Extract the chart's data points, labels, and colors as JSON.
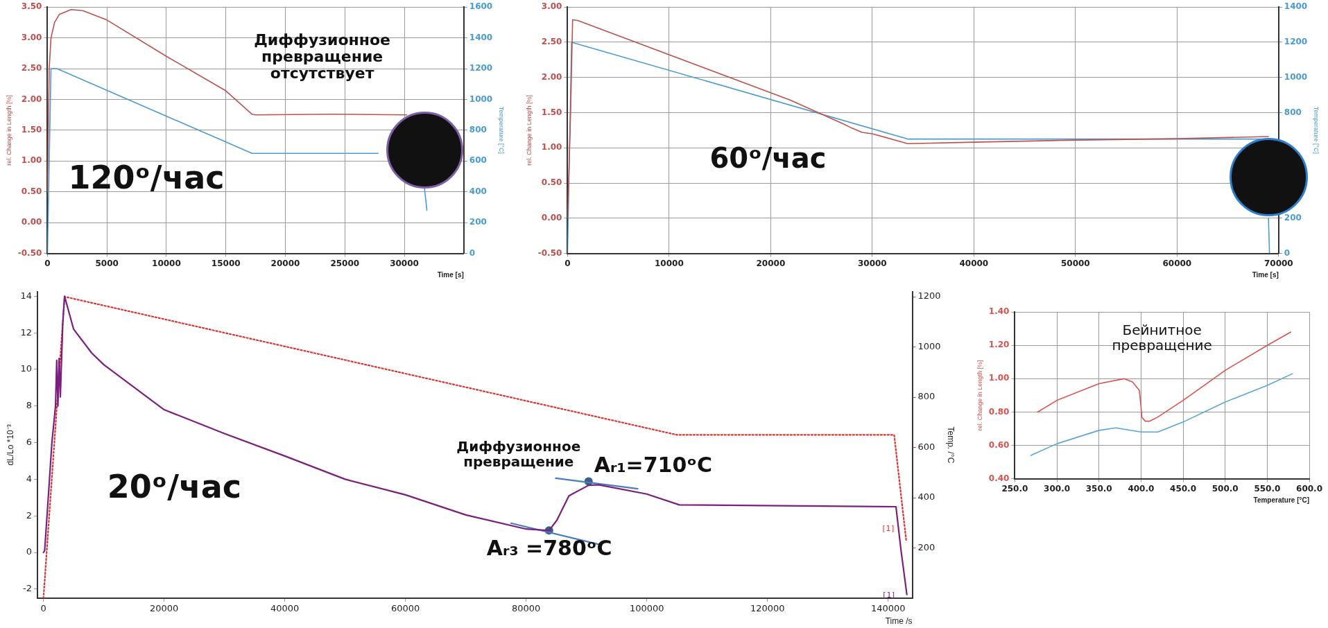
{
  "chart_data": [
    {
      "type": "line",
      "xlabel": "Time [s]",
      "ylabel": "rel. Change in Length [%]",
      "y2label": "Temperature [°C]",
      "grid": true,
      "legend": false,
      "xlim": [
        0,
        35000
      ],
      "xticks": [
        0,
        5000,
        10000,
        15000,
        20000,
        25000,
        30000
      ],
      "ylim": [
        -0.5,
        3.5
      ],
      "yticks": [
        {
          "value": -0.5,
          "label": "-0.50"
        },
        {
          "value": 0,
          "label": "0.00"
        },
        {
          "value": 0.5,
          "label": "0.50"
        },
        {
          "value": 1,
          "label": "1.00"
        },
        {
          "value": 1.5,
          "label": "1.50"
        },
        {
          "value": 2,
          "label": "2.00"
        },
        {
          "value": 2.5,
          "label": "2.50"
        },
        {
          "value": 3,
          "label": "3.00"
        },
        {
          "value": 3.5,
          "label": "3.50"
        }
      ],
      "y2lim": [
        0,
        1600
      ],
      "y2ticks": [
        0,
        200,
        400,
        600,
        800,
        1000,
        1200,
        1400,
        1600
      ],
      "series": [
        {
          "color": "#c0504d",
          "x": [
            0,
            150,
            300,
            600,
            1000,
            2000,
            3000,
            5000,
            10000,
            15000,
            17200,
            17500,
            24000,
            30200
          ],
          "values": [
            0.5,
            2.5,
            3.0,
            3.25,
            3.38,
            3.46,
            3.44,
            3.29,
            2.7,
            2.14,
            1.76,
            1.75,
            1.76,
            1.75
          ]
        },
        {
          "color": "#4a9bd1",
          "axis": "y2",
          "x": [
            0,
            300,
            800,
            17200,
            27800,
            30000,
            31700,
            31900
          ],
          "values": [
            0,
            1200,
            1200,
            650,
            650,
            null,
            420,
            280
          ]
        }
      ],
      "annotations": [
        "Диффузионное превращение отсутствует",
        "120ᵒ/час"
      ]
    },
    {
      "type": "line",
      "xlabel": "Time [s]",
      "ylabel": "rel. Change in Length [%]",
      "y2label": "Temperature [°C]",
      "grid": true,
      "legend": false,
      "xlim": [
        0,
        70000
      ],
      "xticks": [
        0,
        10000,
        20000,
        30000,
        40000,
        50000,
        60000,
        70000
      ],
      "ylim": [
        -0.5,
        3.0
      ],
      "yticks": [
        {
          "value": -0.5,
          "label": "-0.50"
        },
        {
          "value": 0,
          "label": "0.00"
        },
        {
          "value": 0.5,
          "label": "0.50"
        },
        {
          "value": 1,
          "label": "1.00"
        },
        {
          "value": 1.5,
          "label": "1.50"
        },
        {
          "value": 2,
          "label": "2.00"
        },
        {
          "value": 2.5,
          "label": "2.50"
        },
        {
          "value": 3,
          "label": "3.00"
        }
      ],
      "y2lim": [
        0,
        1400
      ],
      "y2ticks": [
        0,
        200,
        800,
        1000,
        1200,
        1400
      ],
      "series": [
        {
          "color": "#c0504d",
          "x": [
            0,
            300,
            500,
            1000,
            21900,
            27000,
            28000,
            29000,
            30000,
            33500,
            40000,
            50000,
            60000,
            69000
          ],
          "values": [
            0,
            1.5,
            2.82,
            2.81,
            1.68,
            1.35,
            1.28,
            1.22,
            1.2,
            1.06,
            1.08,
            1.11,
            1.13,
            1.16
          ]
        },
        {
          "color": "#4a9bd1",
          "axis": "y2",
          "x": [
            0,
            400,
            33500,
            68300,
            68600,
            69000,
            69100
          ],
          "values": [
            0,
            1200,
            650,
            650,
            null,
            200,
            0
          ]
        }
      ],
      "annotations": [
        "60ᵒ/час"
      ]
    },
    {
      "type": "line",
      "xlabel": "Time /s",
      "ylabel": "dL/Lo *10⁻³",
      "y2label": "Temp. /°C",
      "grid": false,
      "legend": false,
      "xlim": [
        -1000,
        144000
      ],
      "xticks": [
        0,
        20000,
        40000,
        60000,
        80000,
        100000,
        120000,
        140000
      ],
      "ylim": [
        -2.5,
        14.25
      ],
      "yticks": [
        -2,
        0,
        2,
        4,
        6,
        8,
        10,
        12,
        14
      ],
      "y2lim": [
        0,
        1220
      ],
      "y2ticks": [
        200,
        400,
        600,
        800,
        1000,
        1200
      ],
      "series": [
        {
          "name": "[1]",
          "color": "#7b1f7f",
          "x": [
            0,
            200,
            800,
            1400,
            2000,
            2200,
            2400,
            2600,
            2800,
            3200,
            3500,
            5000,
            8000,
            10000,
            20000,
            30000,
            40000,
            50000,
            60000,
            70000,
            80000,
            83800,
            85100,
            87100,
            90350,
            92000,
            100000,
            105400,
            141300,
            142100,
            143100
          ],
          "values": [
            0,
            0.1,
            3,
            6,
            8,
            10.5,
            8,
            10.6,
            8.5,
            12.5,
            14,
            12.2,
            10.9,
            10.26,
            7.8,
            6.5,
            5.27,
            4,
            3.15,
            2.05,
            1.28,
            1.2,
            1.76,
            3.1,
            3.67,
            3.7,
            3.19,
            2.6,
            2.5,
            0.2,
            -2.3
          ]
        },
        {
          "name": "[1]",
          "color": "#e03030",
          "axis": "y2",
          "line_style": "dotted",
          "x": [
            0,
            3500,
            105000,
            141000,
            143000
          ],
          "values": [
            0,
            1200,
            650,
            650,
            228
          ]
        },
        {
          "type": "line",
          "color": "#4a7ebb",
          "x": [
            77500,
            92300
          ],
          "values": [
            1.6,
            0.42
          ]
        },
        {
          "type": "line",
          "color": "#4a7ebb",
          "x": [
            84900,
            98500
          ],
          "values": [
            4.06,
            3.48
          ]
        },
        {
          "type": "scatter",
          "color": "#3a5f8c",
          "x": [
            83800,
            90350
          ],
          "values": [
            1.2,
            3.88
          ]
        }
      ],
      "annotations": [
        "20ᵒ/час",
        "Диффузионное превращение",
        {
          "text": "Aᵣ₁=710ᵒC",
          "x": 90350,
          "y": 3.88
        },
        {
          "text": "Aᵣ₃ =780ᵒC",
          "x": 83800,
          "y": 1.2
        }
      ]
    },
    {
      "type": "line",
      "xlabel": "Temperature [°C]",
      "ylabel": "rel. Change in Length [%]",
      "grid": true,
      "legend": false,
      "xlim": [
        250,
        600
      ],
      "xticks": [
        {
          "value": 250,
          "label": "250.0"
        },
        {
          "value": 300,
          "label": "300.0"
        },
        {
          "value": 350,
          "label": "350.0"
        },
        {
          "value": 400,
          "label": "400.0"
        },
        {
          "value": 450,
          "label": "450.0"
        },
        {
          "value": 500,
          "label": "500.0"
        },
        {
          "value": 550,
          "label": "550.0"
        },
        {
          "value": 600,
          "label": "600.0"
        }
      ],
      "ylim": [
        0.4,
        1.4
      ],
      "yticks": [
        {
          "value": 0.4,
          "label": "0.40"
        },
        {
          "value": 0.6,
          "label": "0.60"
        },
        {
          "value": 0.8,
          "label": "0.80"
        },
        {
          "value": 1.0,
          "label": "1.00"
        },
        {
          "value": 1.2,
          "label": "1.20"
        },
        {
          "value": 1.4,
          "label": "1.40"
        }
      ],
      "series": [
        {
          "color": "#d9534f",
          "x": [
            277,
            300,
            350,
            380,
            390,
            398,
            400,
            401,
            405,
            410,
            420,
            450,
            500,
            550,
            578
          ],
          "values": [
            0.8,
            0.87,
            0.97,
            1.0,
            0.98,
            0.93,
            0.83,
            0.77,
            0.745,
            0.745,
            0.77,
            0.87,
            1.05,
            1.2,
            1.28
          ]
        },
        {
          "color": "#5aa5d6",
          "x": [
            269,
            300,
            350,
            370,
            400,
            420,
            450,
            500,
            550,
            580
          ],
          "values": [
            0.54,
            0.61,
            0.69,
            0.705,
            0.68,
            0.68,
            0.74,
            0.86,
            0.96,
            1.03
          ]
        }
      ],
      "annotations": [
        "Бейнитное превращение"
      ]
    }
  ]
}
